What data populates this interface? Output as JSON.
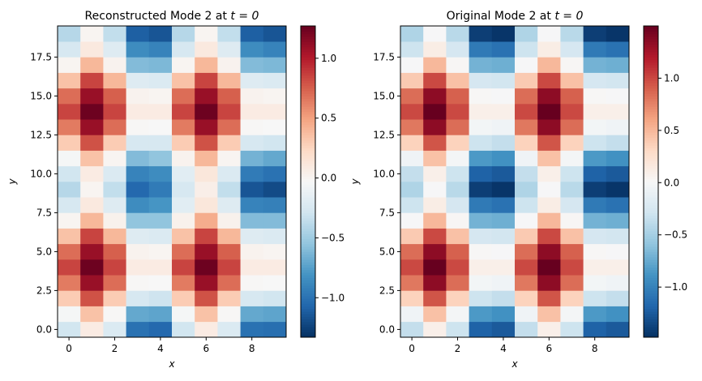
{
  "chart_data": [
    {
      "type": "heatmap",
      "title": "Reconstructed Mode 2 at t = 0",
      "title_prefix": "Reconstructed Mode 2 at ",
      "title_math": "t = 0",
      "xlabel": "x",
      "ylabel": "y",
      "xlim": [
        -0.5,
        9.5
      ],
      "ylim": [
        -0.5,
        19.5
      ],
      "xticks": [
        0,
        2,
        4,
        6,
        8
      ],
      "xtick_labels": [
        "0",
        "2",
        "4",
        "6",
        "8"
      ],
      "yticks": [
        0,
        2.5,
        5,
        7.5,
        10,
        12.5,
        15,
        17.5
      ],
      "ytick_labels": [
        "0.0",
        "2.5",
        "5.0",
        "7.5",
        "10.0",
        "12.5",
        "15.0",
        "17.5"
      ],
      "colormap": "RdBu_r",
      "colorbar": {
        "range": [
          -1.33,
          1.27
        ],
        "ticks": [
          -1,
          -0.5,
          0,
          0.5,
          1
        ],
        "tick_labels": [
          "−1.0",
          "−0.5",
          "0.0",
          "0.5",
          "1.0"
        ]
      },
      "values": [
        [
          -0.28,
          0.08,
          -0.22,
          -1.0,
          -1.05,
          -0.28,
          0.08,
          -0.22,
          -1.0,
          -1.02
        ],
        [
          -0.05,
          0.35,
          -0.02,
          -0.7,
          -0.72,
          -0.05,
          0.35,
          -0.02,
          -0.7,
          -0.72
        ],
        [
          0.3,
          0.8,
          0.3,
          -0.25,
          -0.3,
          0.3,
          0.8,
          0.3,
          -0.25,
          -0.28
        ],
        [
          0.65,
          1.1,
          0.7,
          -0.02,
          -0.03,
          0.65,
          1.1,
          0.7,
          -0.02,
          -0.03
        ],
        [
          0.85,
          1.25,
          0.85,
          0.08,
          0.08,
          0.85,
          1.25,
          0.85,
          0.08,
          0.08
        ],
        [
          0.7,
          1.1,
          0.75,
          0.02,
          0,
          0.7,
          1.1,
          0.75,
          0.02,
          0
        ],
        [
          0.35,
          0.85,
          0.4,
          -0.2,
          -0.22,
          0.35,
          0.85,
          0.4,
          -0.2,
          -0.22
        ],
        [
          0,
          0.4,
          0.03,
          -0.55,
          -0.55,
          0.03,
          0.45,
          0.03,
          -0.6,
          -0.6
        ],
        [
          -0.25,
          0.1,
          -0.2,
          -0.85,
          -0.8,
          -0.18,
          0.12,
          -0.2,
          -0.9,
          -0.92
        ],
        [
          -0.4,
          0,
          -0.35,
          -1.05,
          -0.95,
          -0.25,
          0.05,
          -0.35,
          -1.15,
          -1.2
        ],
        [
          -0.28,
          0.08,
          -0.22,
          -0.9,
          -0.85,
          -0.18,
          0.12,
          -0.22,
          -0.95,
          -1.0
        ],
        [
          -0.05,
          0.35,
          0,
          -0.6,
          -0.55,
          0.02,
          0.4,
          0,
          -0.65,
          -0.7
        ],
        [
          0.3,
          0.8,
          0.3,
          -0.25,
          -0.25,
          0.3,
          0.8,
          0.3,
          -0.25,
          -0.28
        ],
        [
          0.65,
          1.1,
          0.7,
          -0.02,
          -0.03,
          0.65,
          1.1,
          0.7,
          -0.02,
          -0.03
        ],
        [
          0.85,
          1.25,
          0.85,
          0.08,
          0.08,
          0.85,
          1.25,
          0.85,
          0.08,
          0.08
        ],
        [
          0.7,
          1.1,
          0.75,
          0.02,
          0,
          0.7,
          1.1,
          0.75,
          0.02,
          0
        ],
        [
          0.35,
          0.85,
          0.4,
          -0.2,
          -0.22,
          0.35,
          0.85,
          0.4,
          -0.2,
          -0.22
        ],
        [
          0,
          0.4,
          0.02,
          -0.6,
          -0.62,
          0,
          0.4,
          0.02,
          -0.6,
          -0.62
        ],
        [
          -0.25,
          0.1,
          -0.2,
          -0.85,
          -0.9,
          -0.25,
          0.1,
          -0.2,
          -0.85,
          -0.9
        ],
        [
          -0.4,
          0,
          -0.35,
          -1.1,
          -1.15,
          -0.4,
          0,
          -0.35,
          -1.1,
          -1.15
        ]
      ]
    },
    {
      "type": "heatmap",
      "title": "Original Mode 2 at t = 0",
      "title_prefix": "Original Mode 2 at ",
      "title_math": "t = 0",
      "xlabel": "x",
      "ylabel": "y",
      "xlim": [
        -0.5,
        9.5
      ],
      "ylim": [
        -0.5,
        19.5
      ],
      "xticks": [
        0,
        2,
        4,
        6,
        8
      ],
      "xtick_labels": [
        "0",
        "2",
        "4",
        "6",
        "8"
      ],
      "yticks": [
        0,
        2.5,
        5,
        7.5,
        10,
        12.5,
        15,
        17.5
      ],
      "ytick_labels": [
        "0.0",
        "2.5",
        "5.0",
        "7.5",
        "10.0",
        "12.5",
        "15.0",
        "17.5"
      ],
      "colormap": "RdBu_r",
      "colorbar": {
        "range": [
          -1.48,
          1.5
        ],
        "ticks": [
          -1,
          -0.5,
          0,
          0.5,
          1
        ],
        "tick_labels": [
          "−1.0",
          "−0.5",
          "0.0",
          "0.5",
          "1.0"
        ]
      },
      "values": [
        [
          -0.35,
          0.1,
          -0.3,
          -1.2,
          -1.25,
          -0.35,
          0.1,
          -0.3,
          -1.2,
          -1.25
        ],
        [
          -0.05,
          0.45,
          -0.02,
          -0.85,
          -0.9,
          -0.05,
          0.45,
          -0.02,
          -0.85,
          -0.9
        ],
        [
          0.35,
          0.95,
          0.35,
          -0.3,
          -0.35,
          0.35,
          0.95,
          0.35,
          -0.3,
          -0.35
        ],
        [
          0.8,
          1.35,
          0.85,
          -0.03,
          -0.05,
          0.8,
          1.35,
          0.85,
          -0.03,
          -0.05
        ],
        [
          1.0,
          1.5,
          1.0,
          0.1,
          0.1,
          1.0,
          1.5,
          1.0,
          0.1,
          0.1
        ],
        [
          0.85,
          1.35,
          0.9,
          0.02,
          0,
          0.85,
          1.35,
          0.9,
          0.02,
          0
        ],
        [
          0.4,
          1.0,
          0.45,
          -0.25,
          -0.27,
          0.4,
          1.0,
          0.45,
          -0.25,
          -0.27
        ],
        [
          0,
          0.5,
          0.03,
          -0.7,
          -0.72,
          0,
          0.5,
          0.03,
          -0.7,
          -0.72
        ],
        [
          -0.3,
          0.12,
          -0.25,
          -1.05,
          -1.1,
          -0.3,
          0.12,
          -0.25,
          -1.05,
          -1.1
        ],
        [
          -0.45,
          0,
          -0.4,
          -1.4,
          -1.45,
          -0.45,
          0,
          -0.4,
          -1.4,
          -1.45
        ],
        [
          -0.35,
          0.1,
          -0.3,
          -1.2,
          -1.25,
          -0.35,
          0.1,
          -0.3,
          -1.2,
          -1.25
        ],
        [
          -0.05,
          0.45,
          -0.02,
          -0.85,
          -0.9,
          -0.05,
          0.45,
          -0.02,
          -0.85,
          -0.9
        ],
        [
          0.35,
          0.95,
          0.35,
          -0.3,
          -0.35,
          0.35,
          0.95,
          0.35,
          -0.3,
          -0.35
        ],
        [
          0.8,
          1.35,
          0.85,
          -0.03,
          -0.05,
          0.8,
          1.35,
          0.85,
          -0.03,
          -0.05
        ],
        [
          1.0,
          1.5,
          1.0,
          0.1,
          0.1,
          1.0,
          1.5,
          1.0,
          0.1,
          0.1
        ],
        [
          0.85,
          1.35,
          0.9,
          0.02,
          0,
          0.85,
          1.35,
          0.9,
          0.02,
          0
        ],
        [
          0.4,
          1.0,
          0.45,
          -0.25,
          -0.27,
          0.4,
          1.0,
          0.45,
          -0.25,
          -0.27
        ],
        [
          0,
          0.5,
          0.03,
          -0.7,
          -0.72,
          0,
          0.5,
          0.03,
          -0.7,
          -0.72
        ],
        [
          -0.3,
          0.12,
          -0.25,
          -1.05,
          -1.1,
          -0.3,
          0.12,
          -0.25,
          -1.05,
          -1.1
        ],
        [
          -0.45,
          0,
          -0.4,
          -1.4,
          -1.45,
          -0.45,
          0,
          -0.4,
          -1.4,
          -1.45
        ]
      ]
    }
  ]
}
